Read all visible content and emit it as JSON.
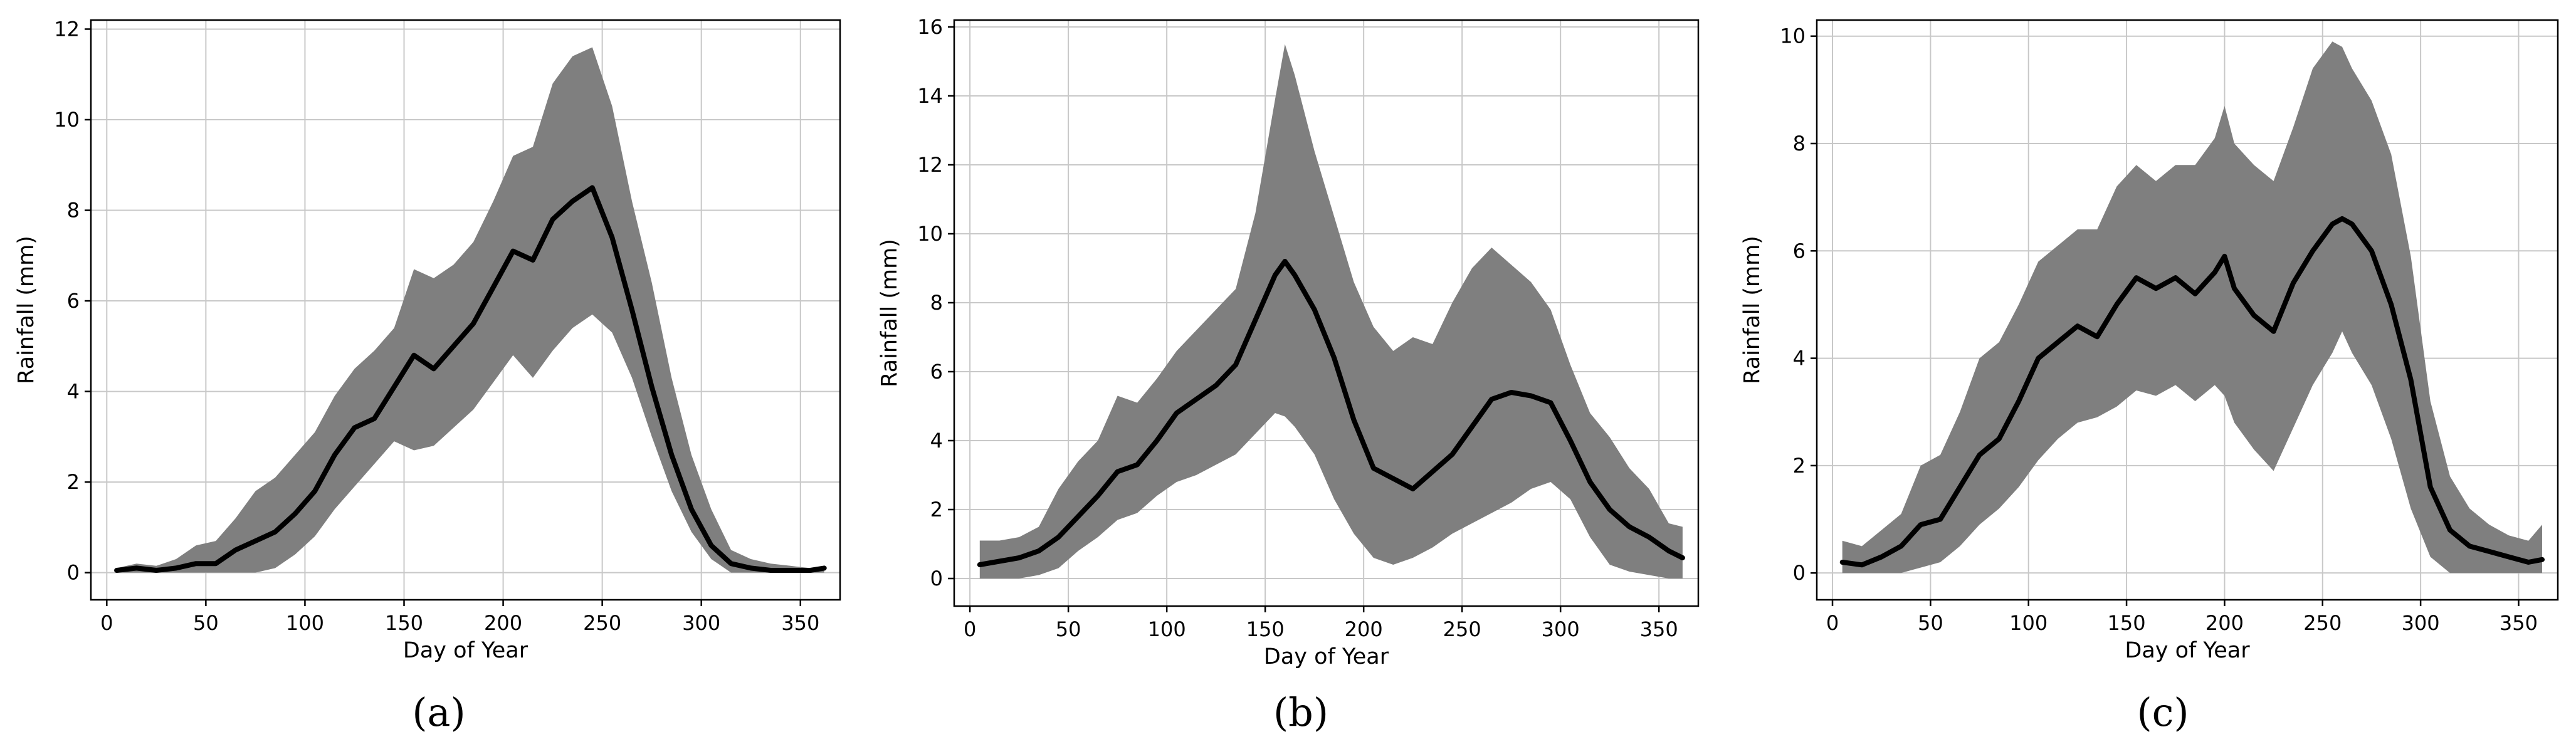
{
  "colors": {
    "band": "#7f7f7f",
    "mean_line": "#000000",
    "grid": "#c8c8c8",
    "axes": "#000000"
  },
  "chart_data": [
    {
      "type": "line",
      "caption": "(a)",
      "xlabel": "Day of Year",
      "ylabel": "Rainfall (mm)",
      "xlim": [
        -8,
        370
      ],
      "ylim": [
        -0.6,
        12.2
      ],
      "xticks": [
        0,
        50,
        100,
        150,
        200,
        250,
        300,
        350
      ],
      "yticks": [
        0,
        2,
        4,
        6,
        8,
        10,
        12
      ],
      "grid": true,
      "series": [
        {
          "kind": "line",
          "x": [
            5,
            15,
            25,
            35,
            45,
            55,
            65,
            75,
            85,
            95,
            105,
            115,
            125,
            135,
            145,
            155,
            165,
            175,
            185,
            195,
            205,
            215,
            225,
            235,
            245,
            255,
            265,
            275,
            285,
            295,
            305,
            315,
            325,
            335,
            345,
            355,
            362
          ],
          "y": [
            0.05,
            0.1,
            0.05,
            0.1,
            0.2,
            0.2,
            0.5,
            0.7,
            0.9,
            1.3,
            1.8,
            2.6,
            3.2,
            3.4,
            4.1,
            4.8,
            4.5,
            5.0,
            5.5,
            6.3,
            7.1,
            6.9,
            7.8,
            8.2,
            8.5,
            7.4,
            5.8,
            4.1,
            2.6,
            1.4,
            0.6,
            0.2,
            0.1,
            0.05,
            0.05,
            0.05,
            0.1
          ]
        },
        {
          "kind": "band",
          "x": [
            5,
            15,
            25,
            35,
            45,
            55,
            65,
            75,
            85,
            95,
            105,
            115,
            125,
            135,
            145,
            155,
            165,
            175,
            185,
            195,
            205,
            215,
            225,
            235,
            245,
            255,
            265,
            275,
            285,
            295,
            305,
            315,
            325,
            335,
            345,
            355,
            362
          ],
          "lower": [
            0,
            0,
            0,
            0,
            0,
            0,
            0,
            0,
            0.1,
            0.4,
            0.8,
            1.4,
            1.9,
            2.4,
            2.9,
            2.7,
            2.8,
            3.2,
            3.6,
            4.2,
            4.8,
            4.3,
            4.9,
            5.4,
            5.7,
            5.3,
            4.3,
            3.0,
            1.8,
            0.9,
            0.3,
            0,
            0,
            0,
            0,
            0,
            0
          ],
          "upper": [
            0.1,
            0.2,
            0.15,
            0.3,
            0.6,
            0.7,
            1.2,
            1.8,
            2.1,
            2.6,
            3.1,
            3.9,
            4.5,
            4.9,
            5.4,
            6.7,
            6.5,
            6.8,
            7.3,
            8.2,
            9.2,
            9.4,
            10.8,
            11.4,
            11.6,
            10.3,
            8.2,
            6.4,
            4.3,
            2.6,
            1.4,
            0.5,
            0.3,
            0.2,
            0.15,
            0.1,
            0.15
          ]
        }
      ]
    },
    {
      "type": "line",
      "caption": "(b)",
      "xlabel": "Day of Year",
      "ylabel": "Rainfall (mm)",
      "xlim": [
        -8,
        370
      ],
      "ylim": [
        -0.8,
        16.2
      ],
      "xticks": [
        0,
        50,
        100,
        150,
        200,
        250,
        300,
        350
      ],
      "yticks": [
        0,
        2,
        4,
        6,
        8,
        10,
        12,
        14,
        16
      ],
      "grid": true,
      "series": [
        {
          "kind": "line",
          "x": [
            5,
            15,
            25,
            35,
            45,
            55,
            65,
            75,
            85,
            95,
            105,
            115,
            125,
            135,
            145,
            155,
            160,
            165,
            175,
            185,
            195,
            205,
            215,
            225,
            235,
            245,
            255,
            265,
            275,
            285,
            295,
            305,
            315,
            325,
            335,
            345,
            355,
            362
          ],
          "y": [
            0.4,
            0.5,
            0.6,
            0.8,
            1.2,
            1.8,
            2.4,
            3.1,
            3.3,
            4.0,
            4.8,
            5.2,
            5.6,
            6.2,
            7.5,
            8.8,
            9.2,
            8.8,
            7.8,
            6.4,
            4.6,
            3.2,
            2.9,
            2.6,
            3.1,
            3.6,
            4.4,
            5.2,
            5.4,
            5.3,
            5.1,
            4.0,
            2.8,
            2.0,
            1.5,
            1.2,
            0.8,
            0.6
          ]
        },
        {
          "kind": "band",
          "x": [
            5,
            15,
            25,
            35,
            45,
            55,
            65,
            75,
            85,
            95,
            105,
            115,
            125,
            135,
            145,
            155,
            160,
            165,
            175,
            185,
            195,
            205,
            215,
            225,
            235,
            245,
            255,
            265,
            275,
            285,
            295,
            305,
            315,
            325,
            335,
            345,
            355,
            362
          ],
          "lower": [
            0,
            0,
            0,
            0.1,
            0.3,
            0.8,
            1.2,
            1.7,
            1.9,
            2.4,
            2.8,
            3.0,
            3.3,
            3.6,
            4.2,
            4.8,
            4.7,
            4.4,
            3.6,
            2.3,
            1.3,
            0.6,
            0.4,
            0.6,
            0.9,
            1.3,
            1.6,
            1.9,
            2.2,
            2.6,
            2.8,
            2.3,
            1.2,
            0.4,
            0.2,
            0.1,
            0,
            0
          ],
          "upper": [
            1.1,
            1.1,
            1.2,
            1.5,
            2.6,
            3.4,
            4.0,
            5.3,
            5.1,
            5.8,
            6.6,
            7.2,
            7.8,
            8.4,
            10.6,
            13.9,
            15.5,
            14.6,
            12.4,
            10.5,
            8.6,
            7.3,
            6.6,
            7.0,
            6.8,
            8.0,
            9.0,
            9.6,
            9.1,
            8.6,
            7.8,
            6.2,
            4.8,
            4.1,
            3.2,
            2.6,
            1.6,
            1.5
          ]
        }
      ]
    },
    {
      "type": "line",
      "caption": "(c)",
      "xlabel": "Day of Year",
      "ylabel": "Rainfall (mm)",
      "xlim": [
        -8,
        370
      ],
      "ylim": [
        -0.5,
        10.3
      ],
      "xticks": [
        0,
        50,
        100,
        150,
        200,
        250,
        300,
        350
      ],
      "yticks": [
        0,
        2,
        4,
        6,
        8,
        10
      ],
      "grid": true,
      "series": [
        {
          "kind": "line",
          "x": [
            5,
            15,
            25,
            35,
            45,
            55,
            65,
            75,
            85,
            95,
            105,
            115,
            125,
            135,
            145,
            155,
            165,
            175,
            185,
            195,
            200,
            205,
            215,
            225,
            235,
            245,
            255,
            260,
            265,
            275,
            285,
            295,
            305,
            315,
            325,
            335,
            345,
            355,
            362
          ],
          "y": [
            0.2,
            0.15,
            0.3,
            0.5,
            0.9,
            1.0,
            1.6,
            2.2,
            2.5,
            3.2,
            4.0,
            4.3,
            4.6,
            4.4,
            5.0,
            5.5,
            5.3,
            5.5,
            5.2,
            5.6,
            5.9,
            5.3,
            4.8,
            4.5,
            5.4,
            6.0,
            6.5,
            6.6,
            6.5,
            6.0,
            5.0,
            3.6,
            1.6,
            0.8,
            0.5,
            0.4,
            0.3,
            0.2,
            0.25
          ]
        },
        {
          "kind": "band",
          "x": [
            5,
            15,
            25,
            35,
            45,
            55,
            65,
            75,
            85,
            95,
            105,
            115,
            125,
            135,
            145,
            155,
            165,
            175,
            185,
            195,
            200,
            205,
            215,
            225,
            235,
            245,
            255,
            260,
            265,
            275,
            285,
            295,
            305,
            315,
            325,
            335,
            345,
            355,
            362
          ],
          "lower": [
            0,
            0,
            0,
            0,
            0.1,
            0.2,
            0.5,
            0.9,
            1.2,
            1.6,
            2.1,
            2.5,
            2.8,
            2.9,
            3.1,
            3.4,
            3.3,
            3.5,
            3.2,
            3.5,
            3.3,
            2.8,
            2.3,
            1.9,
            2.7,
            3.5,
            4.1,
            4.5,
            4.1,
            3.5,
            2.5,
            1.2,
            0.3,
            0,
            0,
            0,
            0,
            0,
            0
          ],
          "upper": [
            0.6,
            0.5,
            0.8,
            1.1,
            2.0,
            2.2,
            3.0,
            4.0,
            4.3,
            5.0,
            5.8,
            6.1,
            6.4,
            6.4,
            7.2,
            7.6,
            7.3,
            7.6,
            7.6,
            8.1,
            8.7,
            8.0,
            7.6,
            7.3,
            8.3,
            9.4,
            9.9,
            9.8,
            9.4,
            8.8,
            7.8,
            5.9,
            3.2,
            1.8,
            1.2,
            0.9,
            0.7,
            0.6,
            0.9
          ]
        }
      ]
    }
  ]
}
